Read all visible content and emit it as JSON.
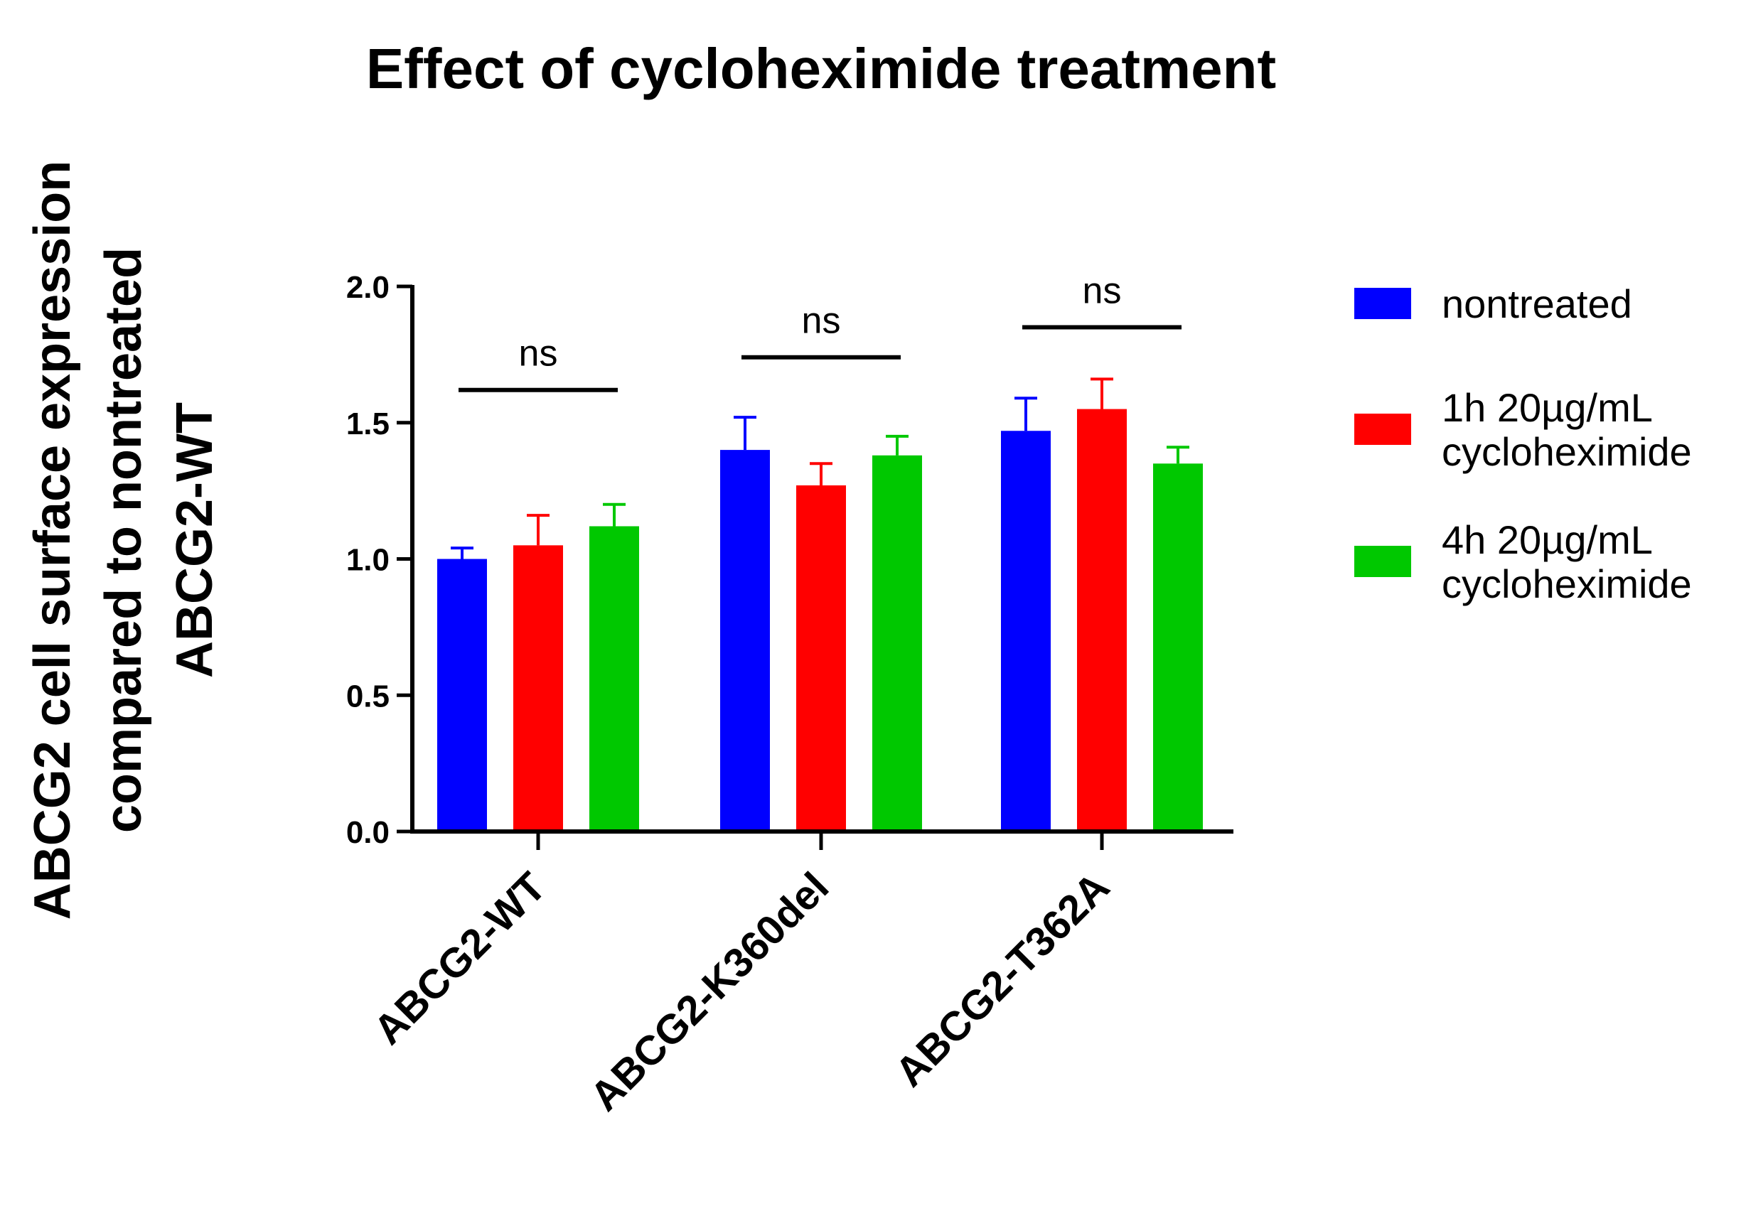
{
  "chart_data": {
    "type": "bar",
    "title": "Effect of cycloheximide treatment",
    "xlabel": "",
    "ylabel": [
      "ABCG2 cell surface expression",
      "compared to nontreated",
      "ABCG2-WT"
    ],
    "ylim": [
      0,
      2.0
    ],
    "yticks": [
      0.0,
      0.5,
      1.0,
      1.5,
      2.0
    ],
    "ytick_labels": [
      "0.0",
      "0.5",
      "1.0",
      "1.5",
      "2.0"
    ],
    "categories": [
      "ABCG2-WT",
      "ABCG2-K360del",
      "ABCG2-T362A"
    ],
    "series": [
      {
        "name": "nontreated",
        "legend_lines": [
          "nontreated"
        ],
        "color": "#0000ff",
        "values": [
          1.0,
          1.4,
          1.47
        ],
        "errors": [
          0.04,
          0.12,
          0.12
        ]
      },
      {
        "name": "1h 20µg/mL cycloheximide",
        "legend_lines": [
          "1h 20µg/mL",
          "cycloheximide"
        ],
        "color": "#ff0000",
        "values": [
          1.05,
          1.27,
          1.55
        ],
        "errors": [
          0.11,
          0.08,
          0.11
        ]
      },
      {
        "name": "4h 20µg/mL cycloheximide",
        "legend_lines": [
          "4h 20µg/mL",
          "cycloheximide"
        ],
        "color": "#00c800",
        "values": [
          1.12,
          1.38,
          1.35
        ],
        "errors": [
          0.08,
          0.07,
          0.06
        ]
      }
    ],
    "significance": [
      {
        "category": "ABCG2-WT",
        "label": "ns",
        "y": 1.62
      },
      {
        "category": "ABCG2-K360del",
        "label": "ns",
        "y": 1.74
      },
      {
        "category": "ABCG2-T362A",
        "label": "ns",
        "y": 1.85
      }
    ],
    "legend_position": "right",
    "grid": false
  }
}
